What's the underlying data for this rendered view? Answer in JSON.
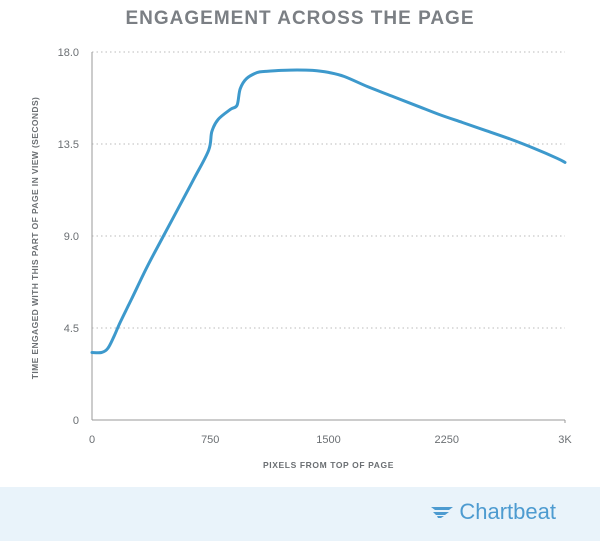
{
  "chart_data": {
    "type": "line",
    "title": "ENGAGEMENT ACROSS THE PAGE",
    "xlabel": "PIXELS FROM TOP OF PAGE",
    "ylabel": "TIME ENGAGED WITH THIS PART OF PAGE IN VIEW (SECONDS)",
    "xlim": [
      0,
      3000
    ],
    "ylim": [
      0,
      18
    ],
    "x_ticks": [
      {
        "value": 0,
        "label": "0"
      },
      {
        "value": 750,
        "label": "750"
      },
      {
        "value": 1500,
        "label": "1500"
      },
      {
        "value": 2250,
        "label": "2250"
      },
      {
        "value": 3000,
        "label": "3K"
      }
    ],
    "y_ticks": [
      {
        "value": 0,
        "label": "0"
      },
      {
        "value": 4.5,
        "label": "4.5"
      },
      {
        "value": 9,
        "label": "9.0"
      },
      {
        "value": 13.5,
        "label": "13.5"
      },
      {
        "value": 18,
        "label": "18.0"
      }
    ],
    "grid": "horizontal dotted",
    "line_color": "#3d99cc",
    "series": [
      {
        "x": [
          0,
          60,
          100,
          140,
          180,
          250,
          350,
          450,
          550,
          650,
          740,
          760,
          800,
          880,
          920,
          940,
          980,
          1050,
          1100,
          1200,
          1300,
          1400,
          1500,
          1600,
          1750,
          1900,
          2050,
          2200,
          2350,
          2500,
          2650,
          2800,
          2950,
          3000
        ],
        "y": [
          3.3,
          3.3,
          3.5,
          4.1,
          4.8,
          5.9,
          7.5,
          8.95,
          10.4,
          11.85,
          13.2,
          14.1,
          14.7,
          15.2,
          15.4,
          16.2,
          16.7,
          17.0,
          17.05,
          17.1,
          17.12,
          17.1,
          17.0,
          16.8,
          16.3,
          15.85,
          15.4,
          14.95,
          14.55,
          14.15,
          13.75,
          13.3,
          12.8,
          12.6
        ]
      }
    ]
  },
  "brand": {
    "name": "Chartbeat",
    "logo_icon": "chartbeat-wing-icon",
    "color": "#4d9bd0"
  },
  "colors": {
    "title": "#7b7f84",
    "axis_text": "#6b6f73",
    "grid": "#bbbbbb",
    "axis": "#9a9a9a",
    "footer_bg": "#e9f3fa"
  }
}
